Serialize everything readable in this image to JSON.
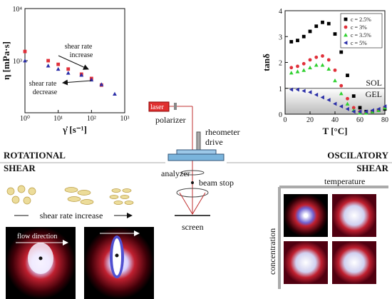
{
  "chart_data": [
    {
      "type": "scatter",
      "log_x": true,
      "log_y": true,
      "xlabel": "γ̇ [s⁻¹]",
      "ylabel": "η [mPa·s]",
      "x": [
        1,
        5,
        10,
        20,
        50,
        100,
        200,
        500
      ],
      "series": [
        {
          "name": "red",
          "color": "#e0303a",
          "marker": "square",
          "values": [
            1500,
            1000,
            850,
            690,
            550,
            455,
            340,
            null
          ]
        },
        {
          "name": "blue",
          "color": "#2b2fa8",
          "marker": "triangle",
          "values": [
            1000,
            800,
            690,
            580,
            530,
            430,
            350,
            230
          ]
        }
      ],
      "xlim": [
        1,
        1000
      ],
      "xticks": [
        {
          "value": 1,
          "label": "10⁰"
        },
        {
          "value": 10,
          "label": "10¹"
        },
        {
          "value": 100,
          "label": "10²"
        },
        {
          "value": 1000,
          "label": "10³"
        }
      ],
      "ylim": [
        100,
        10000
      ],
      "yticks": [
        {
          "value": 1000,
          "label": "10³"
        },
        {
          "value": 10000,
          "label": "10⁴"
        }
      ],
      "annotations": [
        "shear rate",
        "increase",
        "shear rate",
        "decrease"
      ]
    },
    {
      "type": "scatter",
      "xlabel": "T [°C]",
      "ylabel": "tanδ",
      "x": [
        5,
        10,
        15,
        20,
        25,
        30,
        35,
        40,
        45,
        50,
        55,
        60,
        65,
        70,
        75,
        80
      ],
      "series": [
        {
          "name": "c = 2.5%",
          "color": "#000000",
          "marker": "square",
          "values": [
            2.8,
            2.85,
            3.0,
            3.2,
            3.4,
            3.55,
            3.5,
            3.1,
            2.4,
            1.5,
            0.7,
            0.25,
            0.1,
            0.1,
            0.15,
            0.2
          ]
        },
        {
          "name": "c = 3%",
          "color": "#e0303a",
          "marker": "circle",
          "values": [
            1.8,
            1.85,
            1.95,
            2.1,
            2.2,
            2.25,
            2.1,
            1.7,
            1.1,
            0.6,
            0.25,
            0.1,
            0.05,
            0.1,
            0.15,
            0.25
          ]
        },
        {
          "name": "c = 3.5%",
          "color": "#30d030",
          "marker": "triangle",
          "values": [
            1.6,
            1.65,
            1.7,
            1.8,
            1.9,
            1.9,
            1.75,
            1.3,
            0.8,
            0.4,
            0.15,
            0.05,
            0.05,
            0.1,
            0.15,
            0.25
          ]
        },
        {
          "name": "c = 5%",
          "color": "#2b2fa8",
          "marker": "triangle-left",
          "values": [
            0.95,
            0.95,
            0.9,
            0.85,
            0.75,
            0.65,
            0.55,
            0.4,
            0.3,
            0.2,
            0.1,
            0.1,
            0.1,
            0.15,
            0.2,
            0.3
          ]
        }
      ],
      "xlim": [
        0,
        80
      ],
      "xticks": [
        0,
        20,
        40,
        60,
        80
      ],
      "ylim": [
        0,
        4
      ],
      "yticks": [
        0,
        1,
        2,
        3,
        4
      ],
      "hline": 1,
      "legend": "top-right",
      "annotations": [
        "SOL",
        "GEL"
      ]
    }
  ],
  "diagram": {
    "laser": "laser",
    "polarizer": "polarizer",
    "rheometer": [
      "rheometer",
      "drive"
    ],
    "left_title": [
      "ROTATIONAL",
      "SHEAR"
    ],
    "right_title": [
      "OSCILATORY",
      "SHEAR"
    ],
    "analyzer": "analyzer",
    "beam_stop": "beam stop",
    "screen": "screen",
    "shear_rate_increase": "shear rate increase",
    "flow_direction": "flow direction",
    "temperature": "temperature",
    "concentration": "concentration"
  }
}
